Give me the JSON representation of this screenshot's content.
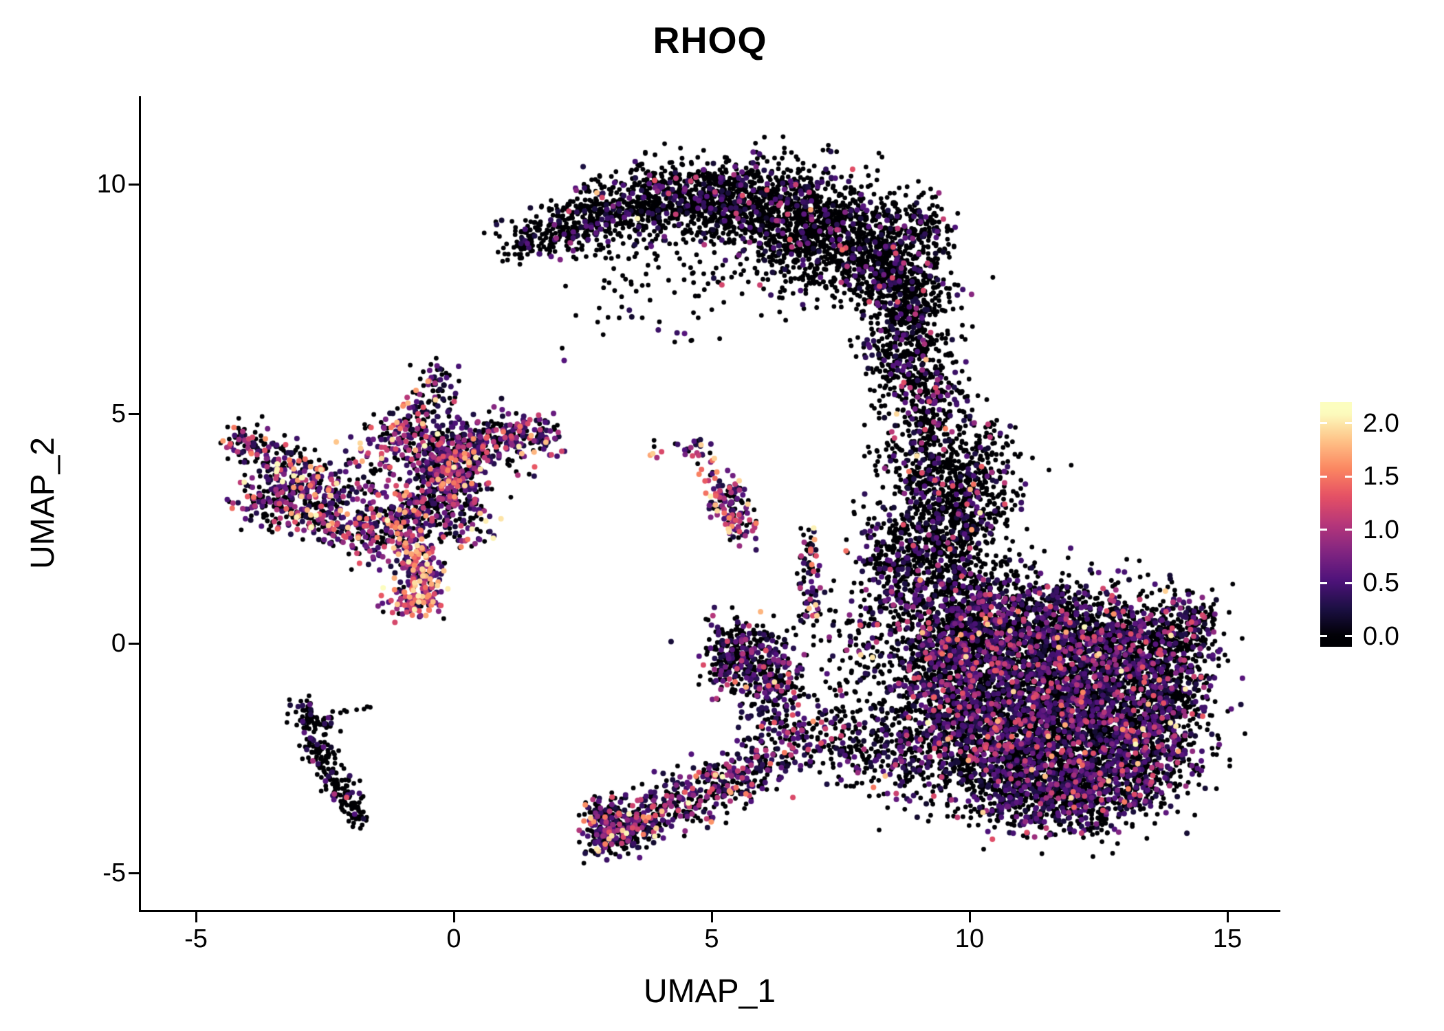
{
  "title": "RHOQ",
  "axes": {
    "x": {
      "label": "UMAP_1",
      "ticks": [
        {
          "v": -5,
          "label": "-5"
        },
        {
          "v": 0,
          "label": "0"
        },
        {
          "v": 5,
          "label": "5"
        },
        {
          "v": 10,
          "label": "10"
        },
        {
          "v": 15,
          "label": "15"
        }
      ]
    },
    "y": {
      "label": "UMAP_2",
      "ticks": [
        {
          "v": 10,
          "label": "10"
        },
        {
          "v": 5,
          "label": "5"
        },
        {
          "v": 0,
          "label": "0"
        },
        {
          "v": -5,
          "label": "-5"
        }
      ]
    }
  },
  "colorbar": {
    "vmin": -0.1,
    "vmax": 2.2,
    "ticks": [
      {
        "v": 2.0,
        "label": "2.0"
      },
      {
        "v": 1.5,
        "label": "1.5"
      },
      {
        "v": 1.0,
        "label": "1.0"
      },
      {
        "v": 0.5,
        "label": "0.5"
      },
      {
        "v": 0.0,
        "label": "0.0"
      }
    ]
  },
  "chart_data": {
    "type": "scatter",
    "title": "RHOQ",
    "xlabel": "UMAP_1",
    "ylabel": "UMAP_2",
    "xlim": [
      -6.1,
      16.0
    ],
    "ylim": [
      -5.8,
      11.9
    ],
    "legend_position": "right-colorbar",
    "grid": false,
    "color_max": 2.1,
    "seed": 987654,
    "colormap": "magma",
    "colormap_stops": [
      "#000004",
      "#1c1044",
      "#4f127b",
      "#812581",
      "#b5367a",
      "#e55064",
      "#fb8761",
      "#fec287",
      "#fcfdbf"
    ],
    "expression_levels": {
      "zero": [
        0.0,
        0.0
      ],
      "low": [
        0.15,
        0.6
      ],
      "mid": [
        0.6,
        1.3
      ],
      "high": [
        1.3,
        2.1
      ]
    },
    "clusters": [
      {
        "name": "top-arc",
        "expr_probs": [
          0.87,
          0.105,
          0.023,
          0.002
        ],
        "blobs": [
          [
            1.45,
            8.75,
            0.28,
            0.22,
            90
          ],
          [
            2.1,
            9.0,
            0.35,
            0.3,
            110
          ],
          [
            2.7,
            9.25,
            0.4,
            0.35,
            160
          ],
          [
            3.4,
            9.5,
            0.5,
            0.4,
            220
          ],
          [
            4.2,
            9.65,
            0.55,
            0.4,
            260
          ],
          [
            5.0,
            9.7,
            0.55,
            0.45,
            300
          ],
          [
            5.8,
            9.6,
            0.55,
            0.5,
            320
          ],
          [
            6.6,
            9.35,
            0.55,
            0.55,
            380
          ],
          [
            7.3,
            9.0,
            0.55,
            0.6,
            400
          ],
          [
            8.0,
            8.6,
            0.5,
            0.6,
            380
          ],
          [
            8.6,
            8.0,
            0.45,
            0.6,
            320
          ],
          [
            8.9,
            7.2,
            0.4,
            0.55,
            260
          ],
          [
            8.8,
            6.3,
            0.45,
            0.5,
            220
          ],
          [
            9.1,
            9.1,
            0.3,
            0.35,
            130
          ],
          [
            5.3,
            8.6,
            0.9,
            0.5,
            70
          ],
          [
            4.4,
            7.4,
            0.6,
            0.5,
            30
          ],
          [
            3.3,
            7.8,
            0.3,
            0.3,
            12
          ],
          [
            6.7,
            8.2,
            0.6,
            0.5,
            80
          ]
        ]
      },
      {
        "name": "right-column",
        "expr_probs": [
          0.8,
          0.15,
          0.042,
          0.008
        ],
        "blobs": [
          [
            9.0,
            5.6,
            0.35,
            0.45,
            130
          ],
          [
            9.3,
            4.8,
            0.4,
            0.45,
            170
          ],
          [
            9.2,
            4.0,
            0.5,
            0.45,
            200
          ],
          [
            9.6,
            3.2,
            0.55,
            0.5,
            260
          ],
          [
            10.4,
            4.1,
            0.35,
            0.4,
            90
          ],
          [
            9.3,
            2.4,
            0.6,
            0.45,
            260
          ],
          [
            8.6,
            1.7,
            0.45,
            0.45,
            170
          ],
          [
            9.5,
            1.5,
            0.6,
            0.5,
            260
          ],
          [
            10.2,
            2.9,
            0.45,
            0.45,
            150
          ]
        ]
      },
      {
        "name": "right-main-blob",
        "expr_probs": [
          0.66,
          0.25,
          0.082,
          0.008
        ],
        "blobs": [
          [
            10.2,
            0.6,
            0.6,
            0.5,
            320
          ],
          [
            11.2,
            0.5,
            0.8,
            0.55,
            480
          ],
          [
            12.3,
            0.2,
            0.8,
            0.6,
            520
          ],
          [
            13.3,
            -0.1,
            0.6,
            0.55,
            380
          ],
          [
            14.1,
            0.1,
            0.35,
            0.45,
            160
          ],
          [
            14.35,
            0.5,
            0.2,
            0.25,
            60
          ],
          [
            9.9,
            -0.4,
            0.6,
            0.6,
            340
          ],
          [
            11.0,
            -0.7,
            0.9,
            0.6,
            560
          ],
          [
            12.2,
            -1.0,
            0.9,
            0.6,
            560
          ],
          [
            13.3,
            -1.3,
            0.7,
            0.6,
            400
          ],
          [
            14.0,
            -1.0,
            0.4,
            0.5,
            160
          ],
          [
            10.3,
            -1.6,
            0.8,
            0.6,
            480
          ],
          [
            11.5,
            -1.9,
            0.9,
            0.6,
            560
          ],
          [
            12.7,
            -2.2,
            0.8,
            0.6,
            440
          ],
          [
            13.6,
            -2.4,
            0.5,
            0.5,
            220
          ],
          [
            10.6,
            -2.6,
            0.7,
            0.5,
            380
          ],
          [
            11.8,
            -2.9,
            0.8,
            0.5,
            420
          ],
          [
            12.9,
            -3.1,
            0.6,
            0.45,
            240
          ],
          [
            11.0,
            -3.4,
            0.6,
            0.4,
            240
          ],
          [
            12.1,
            -3.6,
            0.5,
            0.35,
            160
          ],
          [
            9.4,
            -1.2,
            0.45,
            0.7,
            260
          ],
          [
            9.3,
            0.2,
            0.4,
            0.5,
            170
          ]
        ]
      },
      {
        "name": "between-sparse",
        "expr_probs": [
          0.72,
          0.21,
          0.06,
          0.01
        ],
        "blobs": [
          [
            8.8,
            -2.6,
            0.5,
            0.5,
            160
          ],
          [
            8.0,
            -2.2,
            0.5,
            0.45,
            110
          ],
          [
            7.3,
            -2.0,
            0.4,
            0.4,
            70
          ],
          [
            8.3,
            -0.9,
            0.5,
            0.7,
            110
          ],
          [
            7.7,
            0.3,
            0.5,
            0.6,
            70
          ],
          [
            8.6,
            0.6,
            0.4,
            0.5,
            90
          ]
        ]
      },
      {
        "name": "mid-cluster",
        "expr_probs": [
          0.62,
          0.26,
          0.1,
          0.02
        ],
        "blobs": [
          [
            5.5,
            -0.1,
            0.35,
            0.35,
            160
          ],
          [
            5.9,
            -0.4,
            0.35,
            0.35,
            140
          ],
          [
            6.3,
            -0.8,
            0.3,
            0.35,
            90
          ],
          [
            6.1,
            -1.4,
            0.3,
            0.4,
            70
          ],
          [
            6.6,
            -1.8,
            0.35,
            0.35,
            60
          ],
          [
            5.3,
            -0.6,
            0.25,
            0.3,
            60
          ]
        ]
      },
      {
        "name": "bottom-middle-band",
        "expr_probs": [
          0.5,
          0.27,
          0.17,
          0.06
        ],
        "blobs": [
          [
            3.05,
            -4.15,
            0.28,
            0.25,
            170
          ],
          [
            2.85,
            -3.75,
            0.18,
            0.25,
            70
          ],
          [
            3.5,
            -3.9,
            0.35,
            0.28,
            130
          ],
          [
            4.1,
            -3.6,
            0.4,
            0.28,
            110
          ],
          [
            4.7,
            -3.3,
            0.4,
            0.28,
            100
          ],
          [
            5.3,
            -3.0,
            0.4,
            0.28,
            90
          ],
          [
            5.8,
            -2.7,
            0.35,
            0.28,
            80
          ],
          [
            6.4,
            -2.5,
            0.4,
            0.3,
            60
          ]
        ]
      },
      {
        "name": "lower-left-line",
        "expr_probs": [
          0.9,
          0.08,
          0.02,
          0.0
        ],
        "blobs": [
          [
            -2.85,
            -1.5,
            0.12,
            0.18,
            30
          ],
          [
            -2.7,
            -1.9,
            0.15,
            0.25,
            45
          ],
          [
            -2.55,
            -2.4,
            0.13,
            0.25,
            45
          ],
          [
            -2.35,
            -2.85,
            0.13,
            0.25,
            40
          ],
          [
            -2.15,
            -3.25,
            0.12,
            0.22,
            35
          ],
          [
            -1.95,
            -3.55,
            0.1,
            0.18,
            28
          ],
          [
            -1.8,
            -3.8,
            0.08,
            0.12,
            15
          ],
          [
            -2.6,
            -1.55,
            0.3,
            0.15,
            25
          ],
          [
            -1.62,
            -1.35,
            0.05,
            0.05,
            3
          ]
        ]
      },
      {
        "name": "left-main-group",
        "expr_probs": [
          0.45,
          0.27,
          0.2,
          0.08
        ],
        "blobs": [
          [
            -3.9,
            4.35,
            0.25,
            0.2,
            60
          ],
          [
            -4.15,
            4.55,
            0.12,
            0.12,
            15
          ],
          [
            -3.35,
            3.95,
            0.3,
            0.25,
            70
          ],
          [
            -3.1,
            3.3,
            0.45,
            0.38,
            230
          ],
          [
            -3.65,
            2.95,
            0.3,
            0.22,
            60
          ],
          [
            -2.6,
            2.7,
            0.3,
            0.25,
            80
          ],
          [
            -2.2,
            3.3,
            0.4,
            0.4,
            50
          ],
          [
            -1.95,
            2.45,
            0.3,
            0.28,
            55
          ],
          [
            -1.4,
            2.3,
            0.35,
            0.3,
            90
          ],
          [
            -0.85,
            2.75,
            0.4,
            0.35,
            150
          ],
          [
            -0.25,
            3.3,
            0.45,
            0.38,
            220
          ],
          [
            0.2,
            2.6,
            0.25,
            0.25,
            55
          ],
          [
            -0.15,
            4.15,
            0.4,
            0.33,
            210
          ],
          [
            0.55,
            4.4,
            0.45,
            0.3,
            180
          ],
          [
            1.4,
            4.5,
            0.35,
            0.22,
            110
          ],
          [
            -1.15,
            4.5,
            0.35,
            0.25,
            90
          ],
          [
            -0.55,
            5.15,
            0.25,
            0.32,
            70
          ],
          [
            -0.3,
            5.7,
            0.16,
            0.22,
            35
          ],
          [
            0.1,
            3.7,
            0.3,
            0.3,
            100
          ],
          [
            -1.6,
            3.6,
            0.4,
            0.45,
            60
          ]
        ]
      },
      {
        "name": "left-bright-arm",
        "expr_probs": [
          0.18,
          0.22,
          0.33,
          0.27
        ],
        "blobs": [
          [
            -0.75,
            2.05,
            0.25,
            0.28,
            75
          ],
          [
            -0.6,
            1.4,
            0.22,
            0.3,
            110
          ],
          [
            -0.85,
            0.9,
            0.3,
            0.18,
            75
          ]
        ]
      },
      {
        "name": "small-center-clusters",
        "expr_probs": [
          0.32,
          0.22,
          0.31,
          0.15
        ],
        "blobs": [
          [
            5.3,
            3.15,
            0.22,
            0.25,
            80
          ],
          [
            5.55,
            2.55,
            0.18,
            0.25,
            45
          ],
          [
            4.75,
            4.2,
            0.15,
            0.15,
            22
          ],
          [
            3.88,
            4.18,
            0.08,
            0.08,
            6
          ],
          [
            5.0,
            3.7,
            0.12,
            0.15,
            12
          ]
        ]
      },
      {
        "name": "mid-column",
        "expr_probs": [
          0.5,
          0.2,
          0.18,
          0.12
        ],
        "blobs": [
          [
            6.9,
            1.6,
            0.12,
            0.45,
            45
          ],
          [
            7.0,
            0.85,
            0.15,
            0.25,
            25
          ],
          [
            6.85,
            2.3,
            0.1,
            0.2,
            12
          ]
        ]
      },
      {
        "name": "sparse-singles",
        "expr_probs": [
          0.8,
          0.15,
          0.05,
          0.0
        ],
        "blobs": [
          [
            3.0,
            7.0,
            0.25,
            0.2,
            6
          ],
          [
            4.45,
            6.6,
            0.15,
            0.15,
            4
          ],
          [
            2.2,
            6.3,
            0.1,
            0.1,
            2
          ]
        ]
      }
    ]
  }
}
